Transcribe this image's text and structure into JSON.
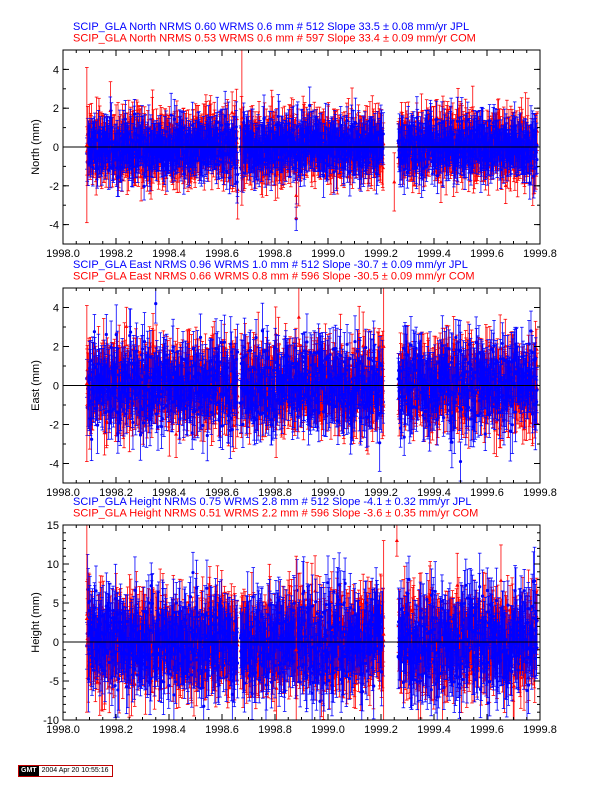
{
  "colors": {
    "blue": "#0000ff",
    "red": "#ff0000",
    "axis": "#000000"
  },
  "footer": {
    "logo": "GMT",
    "timestamp": "2004 Apr 20 10:55:16"
  },
  "chart_data": [
    {
      "type": "scatter",
      "error_bars": true,
      "titles": [
        "SCIP_GLA North NRMS 0.60 WRMS  0.6 mm # 512 Slope   33.5 ±  0.08 mm/yr JPL",
        "SCIP_GLA North NRMS 0.53 WRMS  0.6 mm # 597 Slope   33.4 ±  0.09 mm/yr COM"
      ],
      "ylabel": "North (mm)",
      "xlim": [
        1998.0,
        1999.8
      ],
      "ylim": [
        -5,
        5
      ],
      "xticks": [
        "1998.0",
        "1998.2",
        "1998.4",
        "1998.6",
        "1998.8",
        "1999.0",
        "1999.2",
        "1999.4",
        "1999.6",
        "1999.8"
      ],
      "yticks": [
        "-4",
        "-2",
        "0",
        "2",
        "4"
      ],
      "grid": false,
      "series": [
        {
          "name": "JPL",
          "color": "blue",
          "count": 512,
          "wrms": 0.6,
          "err_typ": 1.0,
          "segments": [
            [
              1998.09,
              1998.66
            ],
            [
              1998.67,
              1999.21
            ],
            [
              1999.265,
              1999.79
            ]
          ]
        },
        {
          "name": "COM",
          "color": "red",
          "count": 597,
          "wrms": 0.6,
          "err_typ": 1.2,
          "segments": [
            [
              1998.09,
              1998.66
            ],
            [
              1998.67,
              1999.21
            ],
            [
              1999.265,
              1999.79
            ]
          ]
        }
      ],
      "outliers": [
        {
          "series": "COM",
          "x": 1998.09,
          "y": 0.1,
          "err": 4.0
        },
        {
          "series": "COM",
          "x": 1998.675,
          "y": 1.5,
          "err": 4.5
        },
        {
          "series": "JPL",
          "x": 1998.88,
          "y": -3.7,
          "err": 0.6
        },
        {
          "series": "COM",
          "x": 1998.88,
          "y": -2.5,
          "err": 1.2
        },
        {
          "series": "COM",
          "x": 1999.25,
          "y": -1.8,
          "err": 1.5
        }
      ]
    },
    {
      "type": "scatter",
      "error_bars": true,
      "titles": [
        "SCIP_GLA East NRMS 0.96 WRMS  1.0 mm # 512 Slope  -30.7 ±  0.09 mm/yr JPL",
        "SCIP_GLA East NRMS 0.66 WRMS  0.8 mm # 596 Slope  -30.5 ±  0.09 mm/yr COM"
      ],
      "ylabel": "East (mm)",
      "xlim": [
        1998.0,
        1999.8
      ],
      "ylim": [
        -5,
        5
      ],
      "xticks": [
        "1998.0",
        "1998.2",
        "1998.4",
        "1998.6",
        "1998.8",
        "1999.0",
        "1999.2",
        "1999.4",
        "1999.6",
        "1999.8"
      ],
      "yticks": [
        "-4",
        "-2",
        "0",
        "2",
        "4"
      ],
      "grid": false,
      "series": [
        {
          "name": "JPL",
          "color": "blue",
          "count": 512,
          "wrms": 1.0,
          "err_typ": 1.2,
          "segments": [
            [
              1998.09,
              1998.66
            ],
            [
              1998.67,
              1999.21
            ],
            [
              1999.265,
              1999.79
            ]
          ]
        },
        {
          "name": "COM",
          "color": "red",
          "count": 596,
          "wrms": 0.8,
          "err_typ": 1.4,
          "segments": [
            [
              1998.09,
              1998.66
            ],
            [
              1998.67,
              1999.21
            ],
            [
              1999.265,
              1999.79
            ]
          ]
        }
      ],
      "outliers": [
        {
          "series": "COM",
          "x": 1998.09,
          "y": 0.1,
          "err": 4.0
        },
        {
          "series": "JPL",
          "x": 1998.35,
          "y": 4.2,
          "err": 1.0
        },
        {
          "series": "COM",
          "x": 1998.89,
          "y": 3.5,
          "err": 1.5
        },
        {
          "series": "COM",
          "x": 1999.21,
          "y": 2.0,
          "err": 3.0
        },
        {
          "series": "JPL",
          "x": 1999.5,
          "y": -3.9,
          "err": 1.0
        }
      ]
    },
    {
      "type": "scatter",
      "error_bars": true,
      "titles": [
        "SCIP_GLA Height NRMS 0.75 WRMS  2.8 mm # 512 Slope   -4.1 ±  0.32 mm/yr JPL",
        "SCIP_GLA Height NRMS 0.51 WRMS  2.2 mm # 596 Slope   -3.6 ±  0.35 mm/yr COM"
      ],
      "ylabel": "Height (mm)",
      "xlim": [
        1998.0,
        1999.8
      ],
      "ylim": [
        -10,
        15
      ],
      "xticks": [
        "1998.0",
        "1998.2",
        "1998.4",
        "1998.6",
        "1998.8",
        "1999.0",
        "1999.2",
        "1999.4",
        "1999.6",
        "1999.8"
      ],
      "yticks": [
        "-10",
        "-5",
        "0",
        "5",
        "10",
        "15"
      ],
      "grid": false,
      "series": [
        {
          "name": "JPL",
          "color": "blue",
          "count": 512,
          "wrms": 2.8,
          "err_typ": 3.5,
          "segments": [
            [
              1998.09,
              1998.66
            ],
            [
              1998.67,
              1999.21
            ],
            [
              1999.265,
              1999.79
            ]
          ]
        },
        {
          "name": "COM",
          "color": "red",
          "count": 596,
          "wrms": 2.2,
          "err_typ": 4.0,
          "segments": [
            [
              1998.09,
              1998.66
            ],
            [
              1998.67,
              1999.21
            ],
            [
              1999.265,
              1999.79
            ]
          ]
        }
      ],
      "outliers": [
        {
          "series": "COM",
          "x": 1998.09,
          "y": 3.0,
          "err": 12.0
        },
        {
          "series": "COM",
          "x": 1998.88,
          "y": -1.0,
          "err": 12.0
        },
        {
          "series": "COM",
          "x": 1999.21,
          "y": 1.0,
          "err": 12.0
        },
        {
          "series": "COM",
          "x": 1999.26,
          "y": 13.0,
          "err": 2.0
        }
      ]
    }
  ]
}
